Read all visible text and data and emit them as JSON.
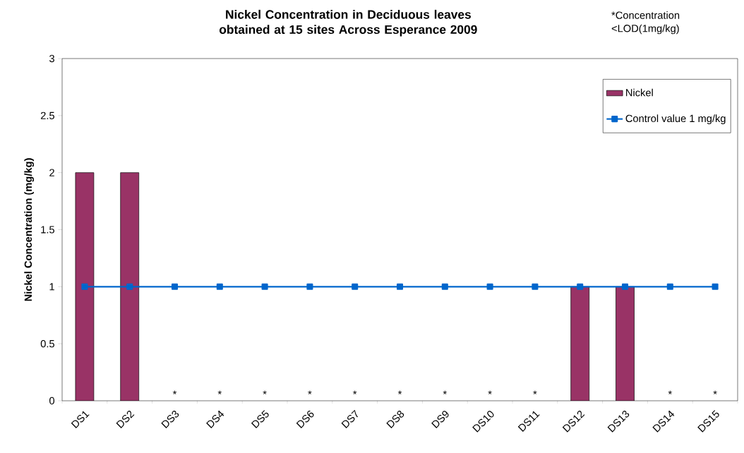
{
  "chart_data": {
    "type": "bar",
    "title": "Nickel Concentration in Deciduous leaves obtained at 15 sites Across Esperance 2009",
    "ylabel": "Nickel Concentration (mg/kg)",
    "categories": [
      "DS1",
      "DS2",
      "DS3",
      "DS4",
      "DS5",
      "DS6",
      "DS7",
      "DS8",
      "DS9",
      "DS10",
      "DS11",
      "DS12",
      "DS13",
      "DS14",
      "DS15"
    ],
    "series": [
      {
        "name": "Nickel",
        "color": "#993366",
        "values": [
          2,
          2,
          0,
          0,
          0,
          0,
          0,
          0,
          0,
          0,
          0,
          1,
          1,
          0,
          0
        ],
        "value_labels": [
          null,
          null,
          "*",
          "*",
          "*",
          "*",
          "*",
          "*",
          "*",
          "*",
          "*",
          null,
          null,
          "*",
          "*"
        ]
      },
      {
        "name": "Control value 1 mg/kg",
        "type": "line",
        "color": "#0066cc",
        "values": [
          1,
          1,
          1,
          1,
          1,
          1,
          1,
          1,
          1,
          1,
          1,
          1,
          1,
          1,
          1
        ]
      }
    ],
    "ylim": [
      0,
      3
    ],
    "yticks": [
      0,
      0.5,
      1,
      1.5,
      2,
      2.5,
      3
    ],
    "annotations": [
      "*Concentration <LOD(1mg/kg)"
    ],
    "legend": "top right",
    "grid": false,
    "marker": "square",
    "line_style": "solid"
  }
}
